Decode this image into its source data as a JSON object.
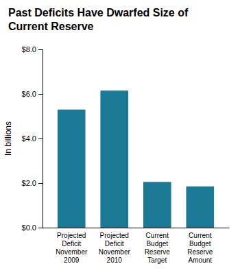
{
  "chart_data": {
    "type": "bar",
    "title": "Past Deficits Have Dwarfed Size of\nCurrent Reserve",
    "categories": [
      "Projected\nDeficit\nNovember\n2009",
      "Projected\nDeficit\nNovember\n2010",
      "Current\nBudget\nReserve\nTarget",
      "Current\nBudget\nReserve\nAmount"
    ],
    "values": [
      5.3,
      6.15,
      2.05,
      1.85
    ],
    "color": "#1a7a96",
    "y_label": "In billions",
    "ylim": [
      0,
      8.0
    ],
    "yticks": [
      {
        "value": 0.0,
        "label": "$0.0"
      },
      {
        "value": 2.0,
        "label": "$2.0"
      },
      {
        "value": 4.0,
        "label": "$4.0"
      },
      {
        "value": 6.0,
        "label": "$6.0"
      },
      {
        "value": 8.0,
        "label": "$8.0"
      }
    ],
    "grid": false
  }
}
